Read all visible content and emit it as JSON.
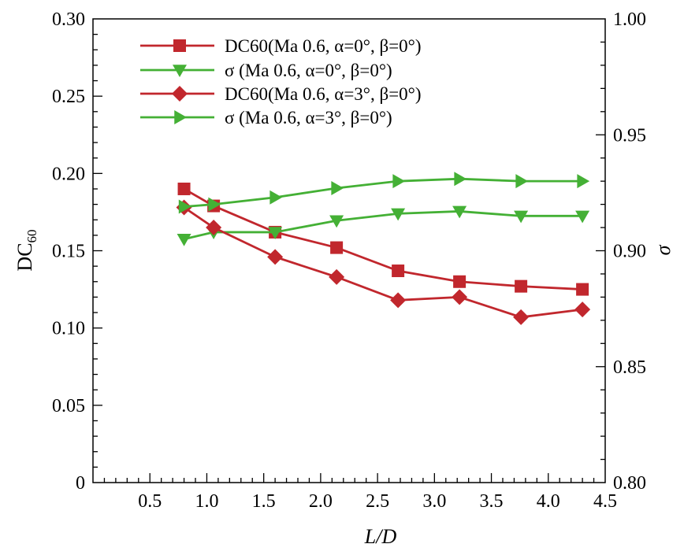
{
  "chart_data": {
    "type": "line",
    "xlabel": "L/D",
    "ylabel_left": "DC60",
    "ylabel_right": "σ",
    "xlim": [
      0,
      4.5
    ],
    "ylim_left": [
      0,
      0.3
    ],
    "ylim_right": [
      0.8,
      1.0
    ],
    "x_ticks": [
      0.5,
      1.0,
      1.5,
      2.0,
      2.5,
      3.0,
      3.5,
      4.0,
      4.5
    ],
    "x_tick_labels": [
      "0.5",
      "1.0",
      "1.5",
      "2.0",
      "2.5",
      "3.0",
      "3.5",
      "4.0",
      "4.5"
    ],
    "y_left_ticks": [
      0,
      0.05,
      0.1,
      0.15,
      0.2,
      0.25,
      0.3
    ],
    "y_left_tick_labels": [
      "0",
      "0.05",
      "0.10",
      "0.15",
      "0.20",
      "0.25",
      "0.30"
    ],
    "y_right_ticks": [
      0.8,
      0.85,
      0.9,
      0.95,
      1.0
    ],
    "y_right_tick_labels": [
      "0.80",
      "0.85",
      "0.90",
      "0.95",
      "1.00"
    ],
    "grid": false,
    "legend_position": "top-left",
    "x": [
      0.8,
      1.06,
      1.6,
      2.14,
      2.68,
      3.22,
      3.76,
      4.3
    ],
    "series": [
      {
        "name": "DC60(Ma 0.6, α=0°, β=0°)",
        "axis": "left",
        "marker": "square",
        "color": "#c1272d",
        "values": [
          0.19,
          0.179,
          0.162,
          0.152,
          0.137,
          0.13,
          0.127,
          0.125
        ]
      },
      {
        "name": "σ (Ma 0.6, α=0°, β=0°)",
        "axis": "right",
        "marker": "triangle-down",
        "color": "#44b035",
        "values": [
          0.905,
          0.908,
          0.908,
          0.913,
          0.916,
          0.917,
          0.915,
          0.915
        ]
      },
      {
        "name": "DC60(Ma 0.6, α=3°, β=0°)",
        "axis": "left",
        "marker": "diamond",
        "color": "#c1272d",
        "values": [
          0.178,
          0.165,
          0.146,
          0.133,
          0.118,
          0.12,
          0.107,
          0.112
        ]
      },
      {
        "name": "σ (Ma 0.6, α=3°, β=0°)",
        "axis": "right",
        "marker": "triangle-right",
        "color": "#44b035",
        "values": [
          0.919,
          0.92,
          0.923,
          0.927,
          0.93,
          0.931,
          0.93,
          0.93
        ]
      }
    ]
  }
}
